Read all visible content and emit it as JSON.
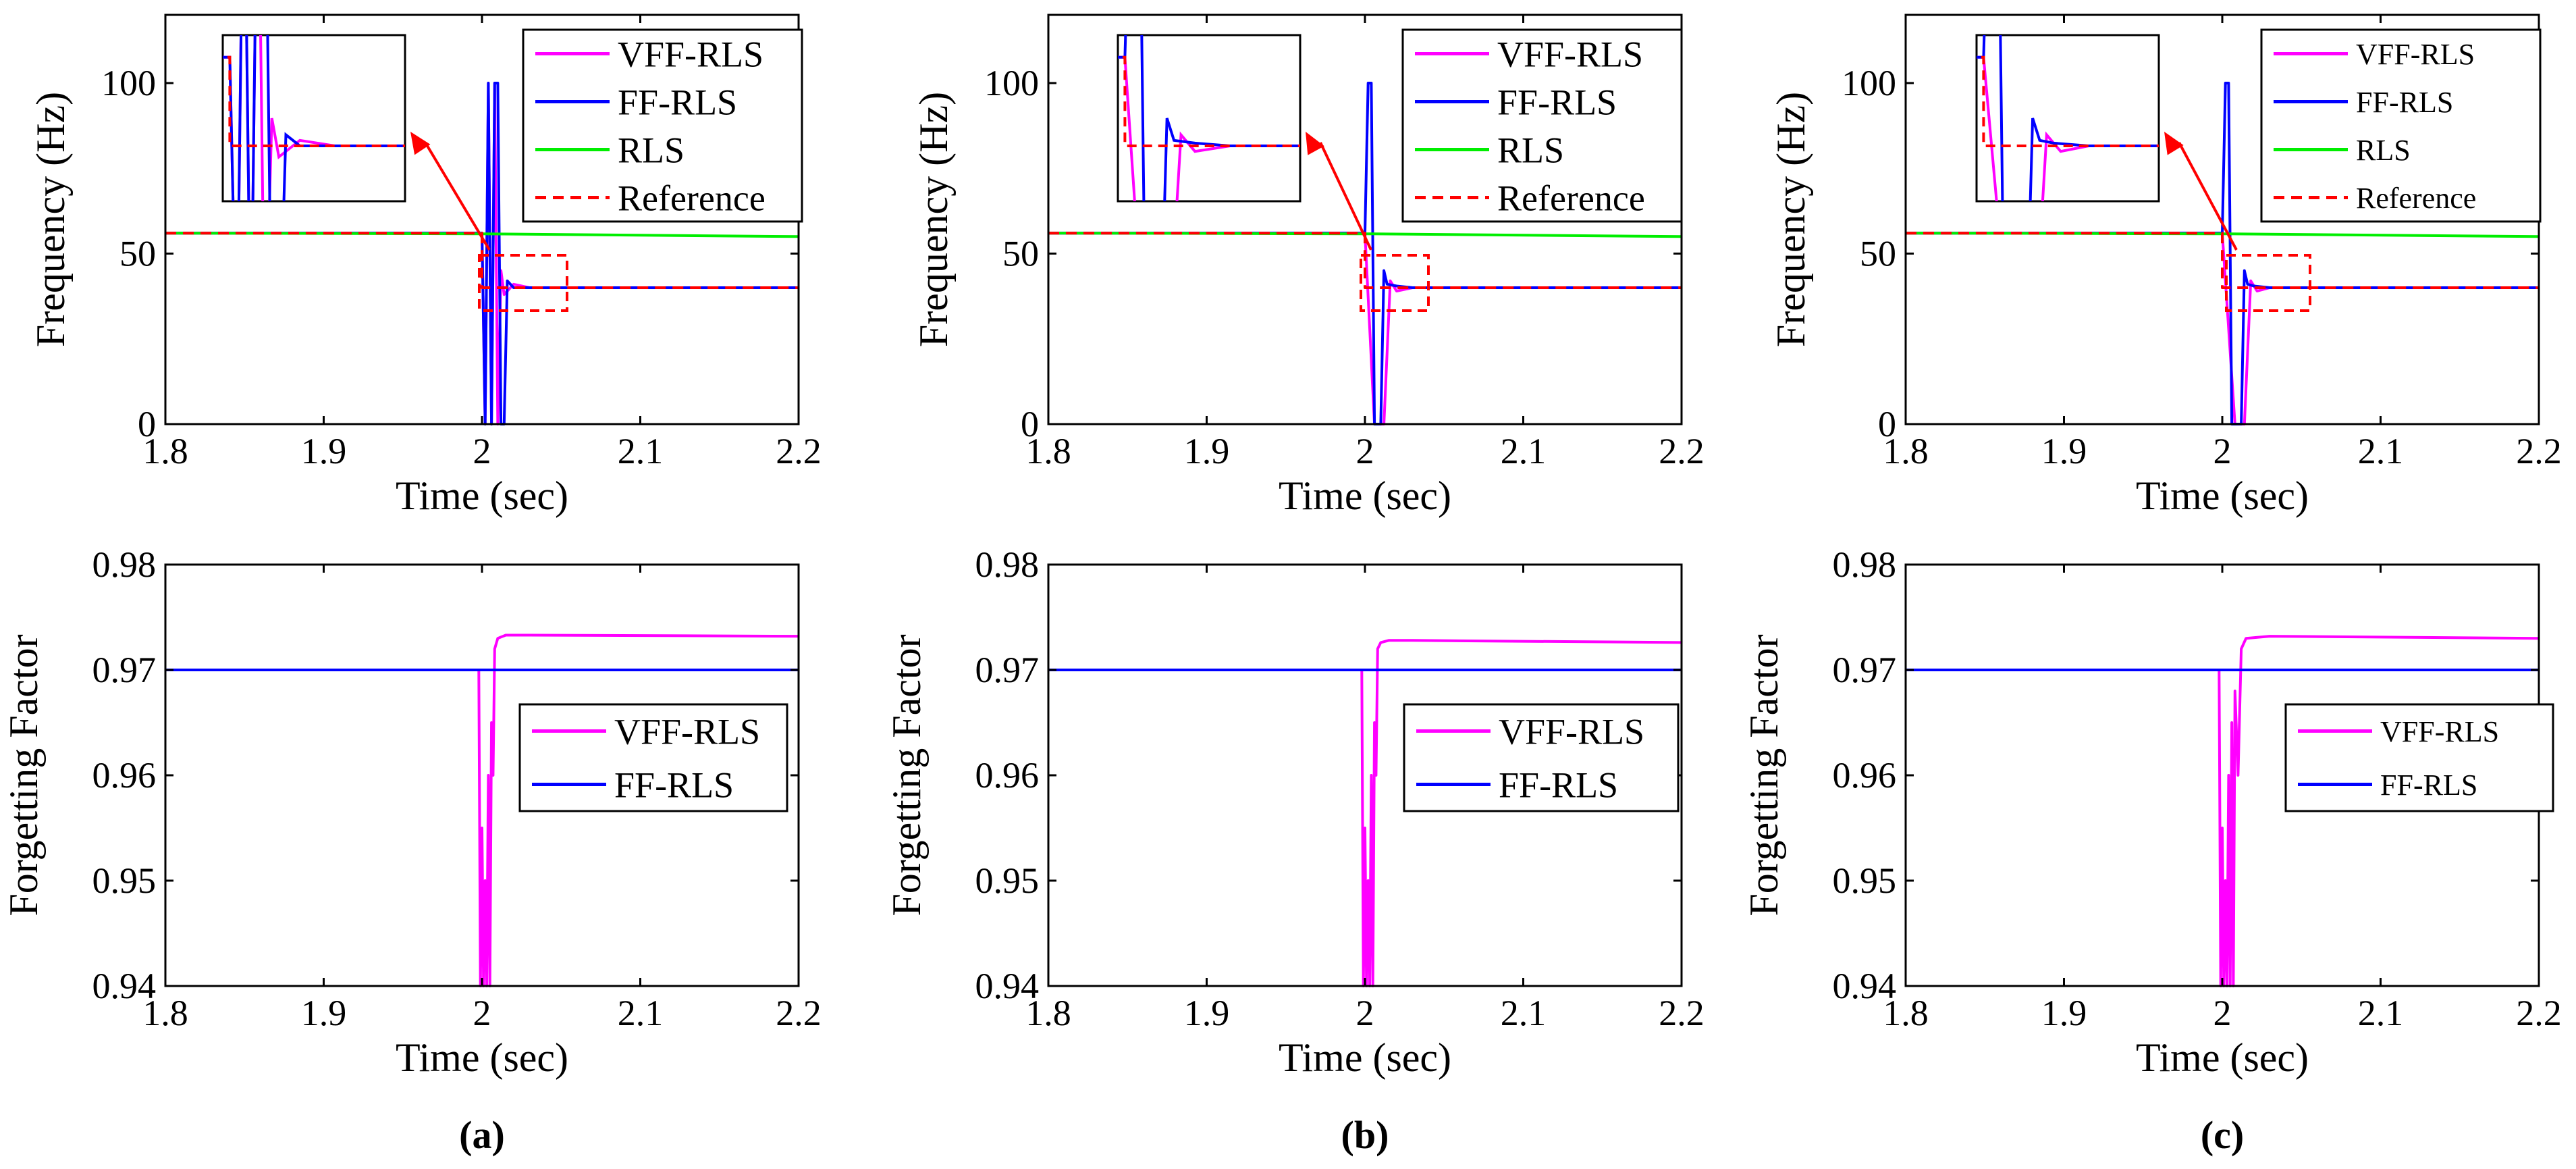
{
  "colors": {
    "vff": "#ff00ff",
    "ff": "#0000ff",
    "rls": "#00ee00",
    "reference": "#ff0000",
    "axis": "#000000",
    "zoom_box": "#ff0000",
    "arrow": "#ff0000"
  },
  "panels": [
    {
      "label": "(a)"
    },
    {
      "label": "(b)"
    },
    {
      "label": "(c)"
    }
  ],
  "chart_data": [
    {
      "panel": "(a)",
      "row": "frequency",
      "type": "line",
      "title": "",
      "xlabel": "Time (sec)",
      "ylabel": "Frequency (Hz)",
      "xlim": [
        1.8,
        2.2
      ],
      "ylim": [
        0,
        120
      ],
      "xticks": [
        "1.8",
        "1.9",
        "2",
        "2.1",
        "2.2"
      ],
      "yticks": [
        "0",
        "50",
        "100"
      ],
      "legend_position": "top-right",
      "legend": [
        "VFF-RLS",
        "FF-RLS",
        "RLS",
        "Reference"
      ],
      "series": [
        {
          "name": "VFF-RLS",
          "x": [
            1.8,
            2.0,
            2.002,
            2.004,
            2.006,
            2.008,
            2.01,
            2.012,
            2.014,
            2.02,
            2.03,
            2.2
          ],
          "y": [
            56,
            56,
            0,
            100,
            0,
            100,
            0,
            45,
            38,
            41,
            40,
            40
          ]
        },
        {
          "name": "FF-RLS",
          "x": [
            1.8,
            2.0,
            2.002,
            2.004,
            2.006,
            2.008,
            2.01,
            2.012,
            2.014,
            2.016,
            2.02,
            2.03,
            2.2
          ],
          "y": [
            56,
            56,
            0,
            100,
            0,
            100,
            100,
            0,
            0,
            42,
            40,
            40,
            40
          ]
        },
        {
          "name": "RLS",
          "x": [
            1.8,
            2.0,
            2.2
          ],
          "y": [
            56,
            55.8,
            55
          ]
        },
        {
          "name": "Reference",
          "x": [
            1.8,
            2.0,
            2.0,
            2.2
          ],
          "y": [
            56,
            56,
            40,
            40
          ]
        }
      ]
    },
    {
      "panel": "(b)",
      "row": "frequency",
      "type": "line",
      "title": "",
      "xlabel": "Time (sec)",
      "ylabel": "Frequency (Hz)",
      "xlim": [
        1.8,
        2.2
      ],
      "ylim": [
        0,
        120
      ],
      "xticks": [
        "1.8",
        "1.9",
        "2",
        "2.1",
        "2.2"
      ],
      "yticks": [
        "0",
        "50",
        "100"
      ],
      "legend_position": "top-right",
      "legend": [
        "VFF-RLS",
        "FF-RLS",
        "RLS",
        "Reference"
      ],
      "series": [
        {
          "name": "VFF-RLS",
          "x": [
            1.8,
            2.0,
            2.006,
            2.012,
            2.016,
            2.02,
            2.03,
            2.2
          ],
          "y": [
            56,
            56,
            0,
            0,
            42,
            39,
            40,
            40
          ]
        },
        {
          "name": "FF-RLS",
          "x": [
            1.8,
            2.0,
            2.002,
            2.004,
            2.006,
            2.01,
            2.012,
            2.014,
            2.02,
            2.03,
            2.2
          ],
          "y": [
            56,
            56,
            100,
            100,
            0,
            0,
            45,
            41,
            40.5,
            40,
            40
          ]
        },
        {
          "name": "RLS",
          "x": [
            1.8,
            2.0,
            2.2
          ],
          "y": [
            56,
            55.8,
            55
          ]
        },
        {
          "name": "Reference",
          "x": [
            1.8,
            2.0,
            2.0,
            2.2
          ],
          "y": [
            56,
            56,
            40,
            40
          ]
        }
      ]
    },
    {
      "panel": "(c)",
      "row": "frequency",
      "type": "line",
      "title": "",
      "xlabel": "Time (sec)",
      "ylabel": "Frequency (Hz)",
      "xlim": [
        1.8,
        2.2
      ],
      "ylim": [
        0,
        120
      ],
      "xticks": [
        "1.8",
        "1.9",
        "2",
        "2.1",
        "2.2"
      ],
      "yticks": [
        "0",
        "50",
        "100"
      ],
      "legend_position": "top-right",
      "legend": [
        "VFF-RLS",
        "FF-RLS",
        "RLS",
        "Reference"
      ],
      "series": [
        {
          "name": "VFF-RLS",
          "x": [
            1.8,
            2.0,
            2.008,
            2.014,
            2.018,
            2.022,
            2.03,
            2.2
          ],
          "y": [
            56,
            56,
            0,
            0,
            42,
            39,
            40,
            40
          ]
        },
        {
          "name": "FF-RLS",
          "x": [
            1.8,
            2.0,
            2.002,
            2.004,
            2.006,
            2.012,
            2.014,
            2.016,
            2.02,
            2.03,
            2.2
          ],
          "y": [
            56,
            56,
            100,
            100,
            0,
            0,
            45,
            41,
            40.5,
            40,
            40
          ]
        },
        {
          "name": "RLS",
          "x": [
            1.8,
            2.0,
            2.2
          ],
          "y": [
            56,
            55.8,
            55
          ]
        },
        {
          "name": "Reference",
          "x": [
            1.8,
            2.0,
            2.0,
            2.2
          ],
          "y": [
            56,
            56,
            40,
            40
          ]
        }
      ]
    },
    {
      "panel": "(a)",
      "row": "forgetting_factor",
      "type": "line",
      "title": "",
      "xlabel": "Time (sec)",
      "ylabel": "Forgetting Factor",
      "xlim": [
        1.8,
        2.2
      ],
      "ylim": [
        0.94,
        0.98
      ],
      "xticks": [
        "1.8",
        "1.9",
        "2",
        "2.1",
        "2.2"
      ],
      "yticks": [
        "0.94",
        "0.95",
        "0.96",
        "0.97",
        "0.98"
      ],
      "legend_position": "center-right",
      "legend": [
        "VFF-RLS",
        "FF-RLS"
      ],
      "series": [
        {
          "name": "VFF-RLS",
          "x": [
            1.8,
            1.998,
            1.999,
            2.0,
            2.001,
            2.002,
            2.003,
            2.004,
            2.005,
            2.006,
            2.007,
            2.008,
            2.01,
            2.015,
            2.03,
            2.2
          ],
          "y": [
            0.97,
            0.97,
            0.94,
            0.955,
            0.94,
            0.95,
            0.94,
            0.96,
            0.94,
            0.965,
            0.96,
            0.972,
            0.973,
            0.9733,
            0.9733,
            0.9732
          ]
        },
        {
          "name": "FF-RLS",
          "x": [
            1.8,
            2.2
          ],
          "y": [
            0.97,
            0.97
          ]
        }
      ]
    },
    {
      "panel": "(b)",
      "row": "forgetting_factor",
      "type": "line",
      "title": "",
      "xlabel": "Time (sec)",
      "ylabel": "Forgetting Factor",
      "xlim": [
        1.8,
        2.2
      ],
      "ylim": [
        0.94,
        0.98
      ],
      "xticks": [
        "1.8",
        "1.9",
        "2",
        "2.1",
        "2.2"
      ],
      "yticks": [
        "0.94",
        "0.95",
        "0.96",
        "0.97",
        "0.98"
      ],
      "legend_position": "center-right",
      "legend": [
        "VFF-RLS",
        "FF-RLS"
      ],
      "series": [
        {
          "name": "VFF-RLS",
          "x": [
            1.8,
            1.998,
            1.999,
            2.0,
            2.001,
            2.002,
            2.003,
            2.004,
            2.005,
            2.006,
            2.007,
            2.008,
            2.01,
            2.015,
            2.03,
            2.2
          ],
          "y": [
            0.97,
            0.97,
            0.94,
            0.955,
            0.94,
            0.95,
            0.94,
            0.96,
            0.94,
            0.965,
            0.96,
            0.972,
            0.9726,
            0.9728,
            0.9728,
            0.9726
          ]
        },
        {
          "name": "FF-RLS",
          "x": [
            1.8,
            2.2
          ],
          "y": [
            0.97,
            0.97
          ]
        }
      ]
    },
    {
      "panel": "(c)",
      "row": "forgetting_factor",
      "type": "line",
      "title": "",
      "xlabel": "Time (sec)",
      "ylabel": "Forgetting Factor",
      "xlim": [
        1.8,
        2.2
      ],
      "ylim": [
        0.94,
        0.98
      ],
      "xticks": [
        "1.8",
        "1.9",
        "2",
        "2.1",
        "2.2"
      ],
      "yticks": [
        "0.94",
        "0.95",
        "0.96",
        "0.97",
        "0.98"
      ],
      "legend_position": "center-right",
      "legend": [
        "VFF-RLS",
        "FF-RLS"
      ],
      "series": [
        {
          "name": "VFF-RLS",
          "x": [
            1.8,
            1.998,
            1.999,
            2.0,
            2.001,
            2.002,
            2.003,
            2.004,
            2.005,
            2.006,
            2.007,
            2.008,
            2.01,
            2.012,
            2.015,
            2.03,
            2.2
          ],
          "y": [
            0.97,
            0.97,
            0.94,
            0.955,
            0.94,
            0.95,
            0.94,
            0.96,
            0.94,
            0.965,
            0.94,
            0.968,
            0.96,
            0.972,
            0.973,
            0.9732,
            0.973
          ]
        },
        {
          "name": "FF-RLS",
          "x": [
            1.8,
            2.2
          ],
          "y": [
            0.97,
            0.97
          ]
        }
      ]
    }
  ]
}
